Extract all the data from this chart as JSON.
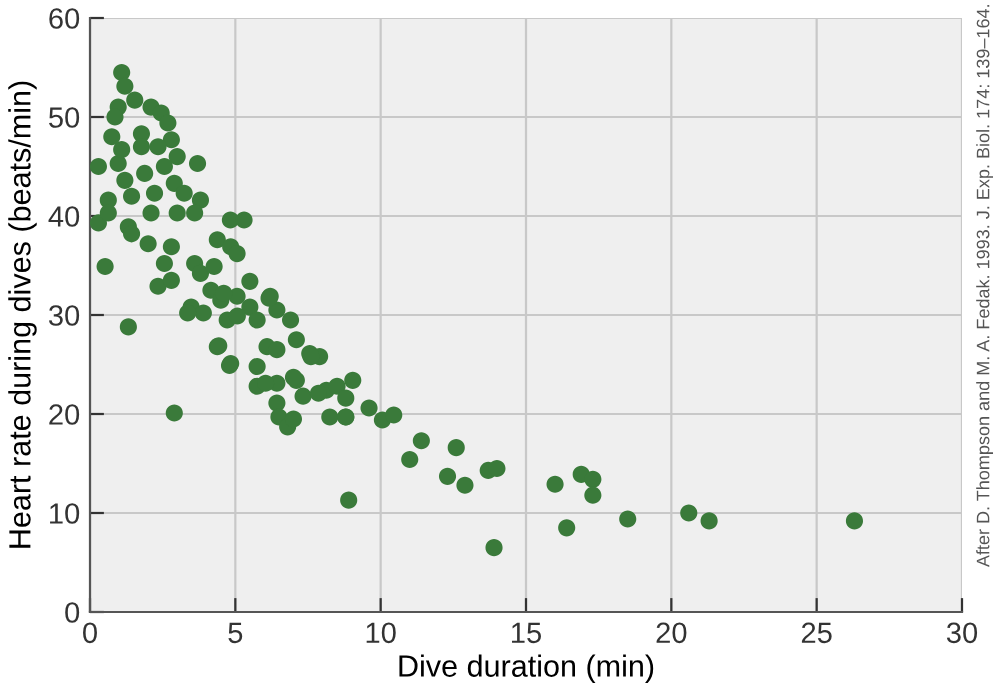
{
  "chart_data": {
    "type": "scatter",
    "xlabel": "Dive duration (min)",
    "ylabel": "Heart rate during dives (beats/min)",
    "annotations": [
      "After D. Thompson and M. A. Fedak. 1993. J. Exp. Biol. 174: 139–164."
    ],
    "xlim": [
      0,
      30
    ],
    "ylim": [
      0,
      60
    ],
    "xticks": [
      0,
      5,
      10,
      15,
      20,
      25,
      30
    ],
    "yticks": [
      0,
      10,
      20,
      30,
      40,
      50,
      60
    ],
    "grid": true,
    "marker": "circle",
    "series": [
      {
        "color": "#3a7a3a",
        "x": [
          1.09,
          1.2,
          0.97,
          1.54,
          2.1,
          2.45,
          0.86,
          0.75,
          1.77,
          2.68,
          2.8,
          3.0,
          3.7,
          0.29,
          0.97,
          1.88,
          2.56,
          2.9,
          1.2,
          0.63,
          1.43,
          2.22,
          3.24,
          3.8,
          0.29,
          1.32,
          2.1,
          3.0,
          3.6,
          0.63,
          4.83,
          5.3,
          0.52,
          1.43,
          2.0,
          2.8,
          4.38,
          4.84,
          5.06,
          2.56,
          3.6,
          2.34,
          2.8,
          3.8,
          4.27,
          3.48,
          4.16,
          4.5,
          5.06,
          5.5,
          6.2,
          1.32,
          3.9,
          4.72,
          5.75,
          6.43,
          6.9,
          4.38,
          4.84,
          5.75,
          6.09,
          6.43,
          7.1,
          7.56,
          7.9,
          5.75,
          6.43,
          7.1,
          8.13,
          9.04,
          6.43,
          7.33,
          8.25,
          8.8,
          2.9,
          9.6,
          10.06,
          1.77,
          2.34,
          1.09,
          3.36,
          4.6,
          5.07,
          5.5,
          6.16,
          4.8,
          4.43,
          6.04,
          6.5,
          6.8,
          7.0,
          7.0,
          7.6,
          7.86,
          8.5,
          8.8,
          8.9,
          8.8,
          10.45,
          11.0,
          11.4,
          12.3,
          12.6,
          12.9,
          13.7,
          14.0,
          13.9,
          16.0,
          16.4,
          16.9,
          17.3,
          17.3,
          18.5,
          20.6,
          21.3,
          26.3
        ],
        "values": [
          54.5,
          53.1,
          51,
          51.7,
          51,
          50.4,
          50,
          48,
          48.3,
          49.4,
          47.7,
          46,
          45.3,
          45,
          45.3,
          44.3,
          45,
          43.3,
          43.6,
          41.6,
          42,
          42.3,
          42.3,
          41.6,
          39.3,
          38.9,
          40.3,
          40.3,
          40.3,
          40.3,
          39.6,
          39.6,
          34.9,
          38.2,
          37.2,
          36.9,
          37.6,
          36.9,
          36.2,
          35.2,
          35.2,
          32.9,
          33.5,
          34.2,
          34.9,
          30.8,
          32.5,
          31.5,
          31.9,
          30.8,
          31.9,
          28.8,
          30.2,
          29.5,
          29.5,
          30.5,
          29.5,
          26.8,
          25.1,
          24.8,
          26.8,
          26.5,
          27.5,
          26.1,
          25.8,
          22.8,
          23.1,
          23.4,
          22.4,
          23.4,
          21.1,
          21.8,
          19.7,
          19.7,
          20.1,
          20.6,
          19.4,
          47,
          47,
          46.7,
          30.2,
          32.2,
          29.9,
          33.4,
          31.7,
          24.9,
          26.9,
          23.1,
          19.7,
          18.7,
          19.5,
          23.7,
          25.8,
          22.1,
          22.8,
          21.6,
          11.3,
          19.7,
          19.9,
          15.4,
          17.3,
          13.7,
          16.6,
          12.8,
          14.3,
          14.5,
          6.5,
          12.9,
          8.5,
          13.9,
          13.4,
          11.8,
          9.4,
          10.0,
          9.2,
          9.2
        ]
      }
    ]
  }
}
